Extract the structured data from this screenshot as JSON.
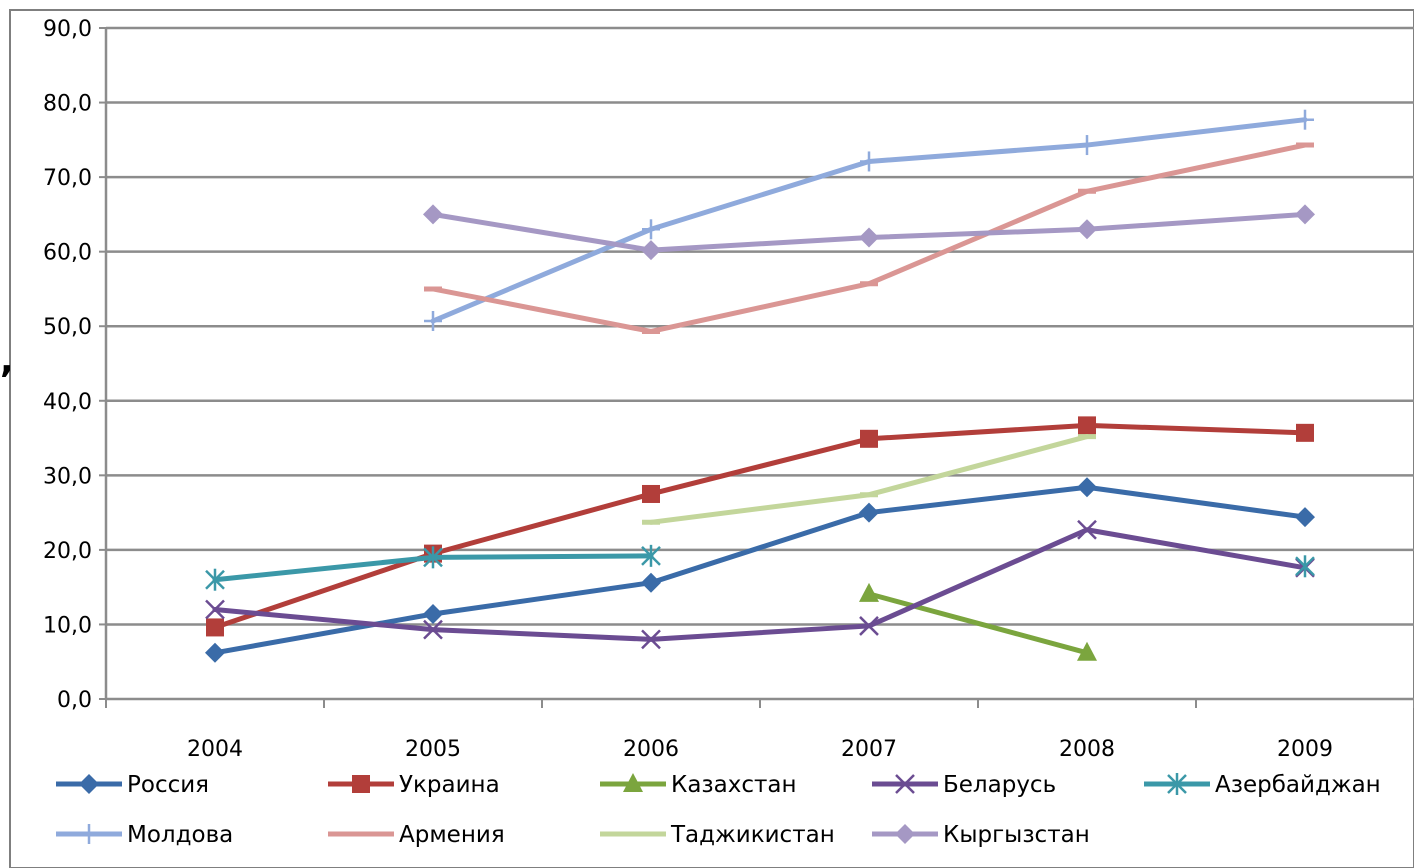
{
  "chart_data": {
    "type": "line",
    "categories": [
      "2004",
      "2005",
      "2006",
      "2007",
      "2008",
      "2009"
    ],
    "ylim": [
      0,
      90
    ],
    "y_ticks": [
      "0,0",
      "10,0",
      "20,0",
      "30,0",
      "40,0",
      "50,0",
      "60,0",
      "70,0",
      "80,0",
      "90,0"
    ],
    "grid": "horizontal",
    "legend_position": "bottom",
    "left_edge_text": ",",
    "series": [
      {
        "name": "Россия",
        "color": "#3A6BA8",
        "marker": "diamond",
        "values": [
          6.2,
          11.4,
          15.6,
          25.0,
          28.4,
          24.4
        ]
      },
      {
        "name": "Украина",
        "color": "#B23E3A",
        "marker": "square",
        "values": [
          9.6,
          19.5,
          27.5,
          34.9,
          36.7,
          35.7
        ]
      },
      {
        "name": "Казахстан",
        "color": "#7BA53E",
        "marker": "triangle",
        "values": [
          null,
          null,
          null,
          14.1,
          6.2,
          null
        ]
      },
      {
        "name": "Беларусь",
        "color": "#6B4C92",
        "marker": "x",
        "values": [
          12.0,
          9.3,
          8.0,
          9.8,
          22.7,
          17.6
        ]
      },
      {
        "name": "Азербайджан",
        "color": "#3B98A8",
        "marker": "star",
        "values": [
          16.0,
          19.0,
          19.2,
          null,
          null,
          17.8
        ]
      },
      {
        "name": "Молдова",
        "color": "#8FAADC",
        "marker": "plus",
        "values": [
          null,
          50.7,
          63.0,
          72.1,
          74.3,
          77.7
        ]
      },
      {
        "name": "Армения",
        "color": "#DA9694",
        "marker": "dash",
        "values": [
          null,
          55.0,
          49.3,
          55.7,
          68.1,
          74.3
        ]
      },
      {
        "name": "Таджикистан",
        "color": "#C3D69B",
        "marker": "dash",
        "values": [
          null,
          null,
          23.7,
          27.4,
          35.2,
          null
        ]
      },
      {
        "name": "Кыргызстан",
        "color": "#A598C4",
        "marker": "diamond",
        "values": [
          null,
          65.0,
          60.2,
          61.9,
          63.0,
          65.0
        ]
      }
    ]
  }
}
